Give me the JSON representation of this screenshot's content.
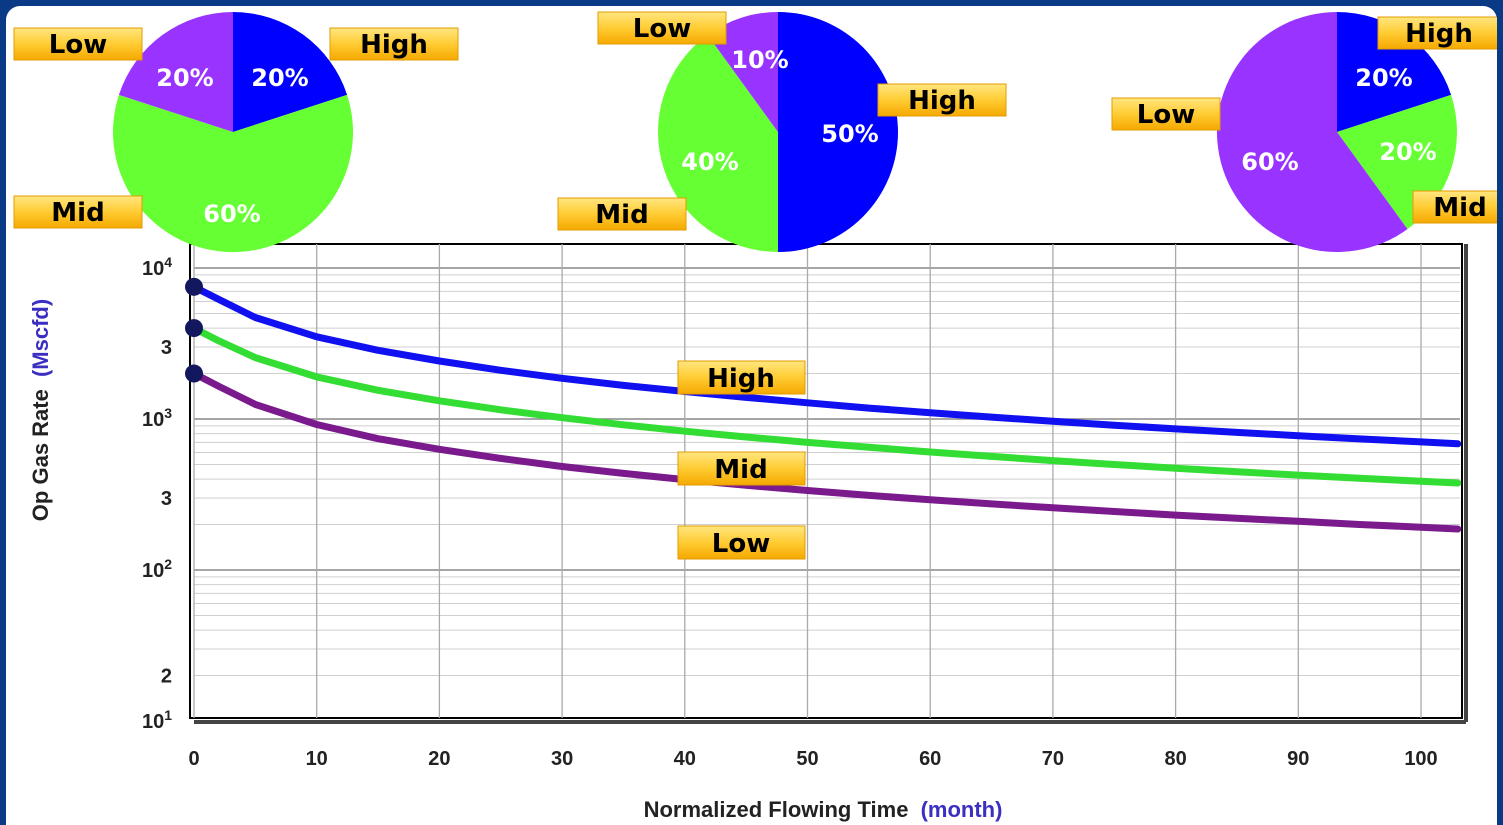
{
  "chart_data": [
    {
      "type": "line",
      "title": "",
      "xlabel": "Normalized Flowing Time",
      "xunit": "(month)",
      "ylabel": "Op Gas Rate",
      "yunit": "(Mscfd)",
      "yscale": "log",
      "xlim": [
        0,
        103
      ],
      "ylim": [
        10,
        10000
      ],
      "x_ticks": [
        "0",
        "10",
        "20",
        "30",
        "40",
        "50",
        "60",
        "70",
        "80",
        "90",
        "100"
      ],
      "y_ticks": [
        {
          "value": 10000,
          "base": "10",
          "exp": "4"
        },
        {
          "value": 3000,
          "base": "3",
          "exp": ""
        },
        {
          "value": 1000,
          "base": "10",
          "exp": "3"
        },
        {
          "value": 300,
          "base": "3",
          "exp": ""
        },
        {
          "value": 100,
          "base": "10",
          "exp": "2"
        },
        {
          "value": 20,
          "base": "2",
          "exp": ""
        },
        {
          "value": 10,
          "base": "10",
          "exp": "1"
        }
      ],
      "grid": true,
      "series": [
        {
          "name": "High",
          "color": "#1010f0",
          "initial": 7500,
          "x": [
            0,
            2,
            5,
            10,
            15,
            20,
            25,
            30,
            35,
            40,
            45,
            50,
            55,
            60,
            65,
            70,
            75,
            80,
            85,
            90,
            95,
            100,
            103
          ],
          "y": [
            7500,
            6200,
            4700,
            3500,
            2850,
            2420,
            2100,
            1860,
            1670,
            1520,
            1390,
            1280,
            1180,
            1100,
            1030,
            965,
            910,
            860,
            815,
            775,
            738,
            705,
            685
          ]
        },
        {
          "name": "Mid",
          "color": "#33dd33",
          "initial": 4000,
          "x": [
            0,
            2,
            5,
            10,
            15,
            20,
            25,
            30,
            35,
            40,
            45,
            50,
            55,
            60,
            65,
            70,
            75,
            80,
            85,
            90,
            95,
            100,
            103
          ],
          "y": [
            4000,
            3300,
            2550,
            1900,
            1550,
            1320,
            1150,
            1020,
            915,
            830,
            760,
            700,
            650,
            605,
            565,
            530,
            500,
            472,
            447,
            425,
            405,
            387,
            377
          ]
        },
        {
          "name": "Low",
          "color": "#7a1a8c",
          "initial": 2000,
          "x": [
            0,
            2,
            5,
            10,
            15,
            20,
            25,
            30,
            35,
            40,
            45,
            50,
            55,
            60,
            65,
            70,
            75,
            80,
            85,
            90,
            95,
            100,
            103
          ],
          "y": [
            2000,
            1650,
            1250,
            920,
            740,
            630,
            548,
            485,
            436,
            397,
            364,
            336,
            312,
            292,
            274,
            258,
            244,
            231,
            220,
            210,
            200,
            192,
            187
          ]
        }
      ],
      "annotations": [
        "High",
        "Mid",
        "Low"
      ]
    },
    {
      "type": "pie",
      "slices": [
        {
          "name": "High",
          "pct": "20%",
          "value": 20,
          "color": "#0000ff"
        },
        {
          "name": "Mid",
          "pct": "60%",
          "value": 60,
          "color": "#66ff33"
        },
        {
          "name": "Low",
          "pct": "20%",
          "value": 20,
          "color": "#9933ff"
        }
      ]
    },
    {
      "type": "pie",
      "slices": [
        {
          "name": "High",
          "pct": "50%",
          "value": 50,
          "color": "#0000ff"
        },
        {
          "name": "Mid",
          "pct": "40%",
          "value": 40,
          "color": "#66ff33"
        },
        {
          "name": "Low",
          "pct": "10%",
          "value": 10,
          "color": "#9933ff"
        }
      ]
    },
    {
      "type": "pie",
      "slices": [
        {
          "name": "High",
          "pct": "20%",
          "value": 20,
          "color": "#0000ff"
        },
        {
          "name": "Mid",
          "pct": "20%",
          "value": 20,
          "color": "#66ff33"
        },
        {
          "name": "Low",
          "pct": "60%",
          "value": 60,
          "color": "#9933ff"
        }
      ]
    }
  ]
}
